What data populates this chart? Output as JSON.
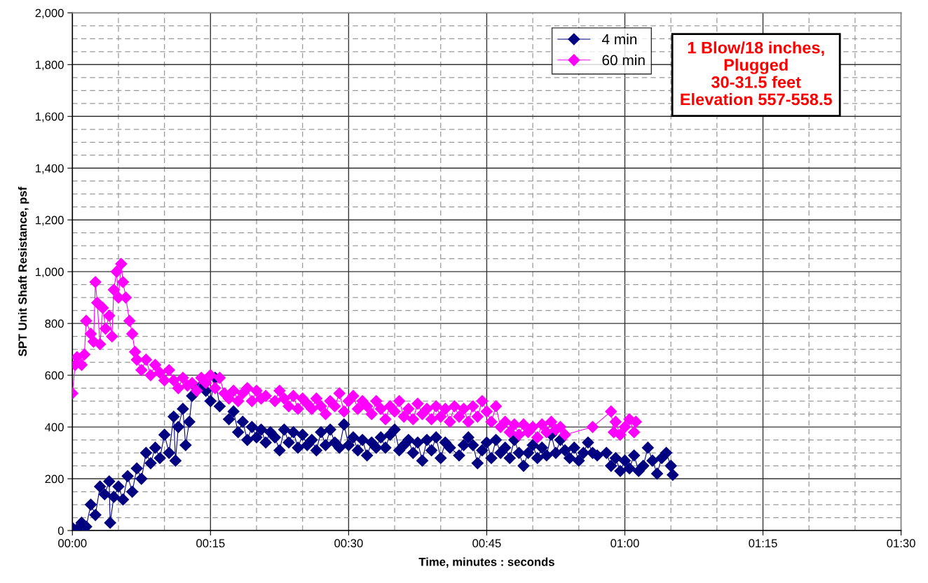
{
  "chart_data": {
    "type": "line",
    "xlabel": "Time, minutes : seconds",
    "ylabel": "SPT Unit Shaft Resistance, psf",
    "annotations": [
      "1 Blow/18 inches,\nPlugged\n30-31.5 feet\nElevation 557-558.5"
    ],
    "xlim": [
      0,
      90
    ],
    "ylim": [
      0,
      2000
    ],
    "xticks": [
      {
        "value": 0,
        "label": "00:00"
      },
      {
        "value": 5,
        "label": null
      },
      {
        "value": 10,
        "label": null
      },
      {
        "value": 15,
        "label": "00:15"
      },
      {
        "value": 20,
        "label": null
      },
      {
        "value": 25,
        "label": null
      },
      {
        "value": 30,
        "label": "00:30"
      },
      {
        "value": 35,
        "label": null
      },
      {
        "value": 40,
        "label": null
      },
      {
        "value": 45,
        "label": "00:45"
      },
      {
        "value": 50,
        "label": null
      },
      {
        "value": 55,
        "label": null
      },
      {
        "value": 60,
        "label": "01:00"
      },
      {
        "value": 65,
        "label": null
      },
      {
        "value": 70,
        "label": null
      },
      {
        "value": 75,
        "label": "01:15"
      },
      {
        "value": 80,
        "label": null
      },
      {
        "value": 85,
        "label": null
      },
      {
        "value": 90,
        "label": "01:30"
      }
    ],
    "yticks": [
      0,
      {
        "value": 50,
        "label": null
      },
      {
        "value": 100,
        "label": null
      },
      {
        "value": 150,
        "label": null
      },
      200,
      {
        "value": 250,
        "label": null
      },
      {
        "value": 300,
        "label": null
      },
      {
        "value": 350,
        "label": null
      },
      400,
      {
        "value": 450,
        "label": null
      },
      {
        "value": 500,
        "label": null
      },
      {
        "value": 550,
        "label": null
      },
      600,
      {
        "value": 650,
        "label": null
      },
      {
        "value": 700,
        "label": null
      },
      {
        "value": 750,
        "label": null
      },
      800,
      {
        "value": 850,
        "label": null
      },
      {
        "value": 900,
        "label": null
      },
      {
        "value": 950,
        "label": null
      },
      {
        "value": 1000,
        "label": "1,000"
      },
      {
        "value": 1050,
        "label": null
      },
      {
        "value": 1100,
        "label": null
      },
      {
        "value": 1150,
        "label": null
      },
      {
        "value": 1200,
        "label": "1,200"
      },
      {
        "value": 1250,
        "label": null
      },
      {
        "value": 1300,
        "label": null
      },
      {
        "value": 1350,
        "label": null
      },
      {
        "value": 1400,
        "label": "1,400"
      },
      {
        "value": 1450,
        "label": null
      },
      {
        "value": 1500,
        "label": null
      },
      {
        "value": 1550,
        "label": null
      },
      {
        "value": 1600,
        "label": "1,600"
      },
      {
        "value": 1650,
        "label": null
      },
      {
        "value": 1700,
        "label": null
      },
      {
        "value": 1750,
        "label": null
      },
      {
        "value": 1800,
        "label": "1,800"
      },
      {
        "value": 1850,
        "label": null
      },
      {
        "value": 1900,
        "label": null
      },
      {
        "value": 1950,
        "label": null
      },
      {
        "value": 2000,
        "label": "2,000"
      }
    ],
    "grid": true,
    "legend": "top",
    "marker": "diamond",
    "line_style": "solid",
    "series": [
      {
        "name": "4 min",
        "color": "#000080",
        "x": [
          0,
          0.5,
          1,
          1.5,
          2,
          2.5,
          3,
          3.5,
          4,
          4.1,
          4.5,
          5,
          5.5,
          6,
          6.5,
          7,
          7.5,
          8,
          8.5,
          9,
          9.5,
          10,
          10.5,
          11,
          11.2,
          11.5,
          12,
          12.3,
          12.7,
          13,
          13.5,
          14,
          14.5,
          15,
          15.5,
          16,
          16.5,
          17,
          17.5,
          18,
          18.5,
          19,
          19.5,
          20,
          20.5,
          21,
          21.5,
          22,
          22.5,
          23,
          23.5,
          24,
          24.5,
          25,
          25.5,
          26,
          26.5,
          27,
          27.5,
          28,
          28.5,
          29,
          29.5,
          30,
          30.5,
          31,
          31.5,
          32,
          32.5,
          33,
          33.5,
          34,
          34.5,
          35,
          35.5,
          36,
          36.5,
          37,
          37.5,
          38,
          38.5,
          39,
          39.5,
          40,
          40.5,
          41,
          42,
          42.5,
          43,
          43.5,
          44,
          44.5,
          45,
          45.5,
          46,
          46.5,
          47,
          47.5,
          48,
          48.5,
          49,
          49.5,
          50,
          50.5,
          51,
          51.5,
          52,
          52.5,
          53,
          53.5,
          54,
          54.5,
          55,
          55.5,
          56,
          56.5,
          57,
          58,
          58.5,
          59,
          59.5,
          60,
          60.5,
          61,
          61.5,
          62,
          62.5,
          63,
          63.5,
          64,
          64.5,
          65,
          65.2
        ],
        "values": [
          10,
          5,
          30,
          15,
          100,
          60,
          170,
          140,
          190,
          30,
          130,
          170,
          120,
          210,
          150,
          240,
          200,
          300,
          260,
          320,
          280,
          370,
          300,
          440,
          270,
          400,
          470,
          330,
          420,
          520,
          550,
          560,
          540,
          500,
          590,
          480,
          null,
          430,
          460,
          380,
          420,
          350,
          400,
          360,
          390,
          340,
          380,
          360,
          310,
          390,
          340,
          380,
          320,
          370,
          330,
          350,
          310,
          380,
          330,
          390,
          340,
          320,
          410,
          330,
          360,
          310,
          350,
          290,
          340,
          320,
          360,
          320,
          370,
          390,
          310,
          330,
          350,
          300,
          340,
          270,
          350,
          310,
          360,
          280,
          340,
          320,
          290,
          330,
          360,
          330,
          260,
          310,
          340,
          280,
          350,
          300,
          320,
          280,
          350,
          300,
          250,
          300,
          330,
          280,
          320,
          290,
          370,
          300,
          350,
          310,
          280,
          320,
          270,
          300,
          340,
          300,
          290,
          300,
          250,
          280,
          230,
          270,
          240,
          290,
          230,
          250,
          320,
          270,
          220,
          280,
          300,
          250,
          215
        ]
      },
      {
        "name": "60 min",
        "color": "#ff00ff",
        "x": [
          0,
          0.3,
          0.5,
          1,
          1.3,
          1.5,
          2,
          2.3,
          2.5,
          2.7,
          3,
          3.3,
          3.6,
          4,
          4.3,
          4.5,
          4.8,
          5,
          5.3,
          5.5,
          5.8,
          6.2,
          6.5,
          6.8,
          7,
          7.5,
          8,
          8.5,
          9,
          9.5,
          10,
          10.5,
          11,
          11.5,
          12,
          12.5,
          13,
          13.5,
          14,
          14.5,
          15,
          15.5,
          16,
          16.5,
          17,
          17.5,
          18,
          18.5,
          19,
          19.5,
          20,
          20.5,
          21,
          22,
          22.5,
          23,
          23.5,
          24,
          24.5,
          25,
          25.5,
          26,
          26.5,
          27,
          27.5,
          28,
          28.5,
          29,
          29.5,
          30,
          30.5,
          31,
          31.5,
          32,
          32.5,
          33,
          33.5,
          34,
          34.5,
          35,
          35.5,
          36,
          36.5,
          37,
          37.5,
          38,
          38.5,
          39,
          39.5,
          40,
          40.5,
          41,
          41.5,
          42,
          42.5,
          43,
          43.5,
          44,
          44.5,
          45,
          45.5,
          46,
          46.5,
          47,
          47.5,
          48,
          48.5,
          49,
          49.5,
          50,
          50.5,
          51,
          51.5,
          52,
          52.5,
          53,
          53.5,
          56.5,
          58.5,
          58.8,
          59,
          59.5,
          60,
          60.5,
          61,
          61.2
        ],
        "values": [
          530,
          640,
          670,
          640,
          680,
          810,
          760,
          730,
          960,
          880,
          720,
          860,
          780,
          830,
          750,
          930,
          1000,
          900,
          1030,
          960,
          900,
          810,
          760,
          690,
          660,
          620,
          660,
          600,
          640,
          610,
          580,
          620,
          580,
          550,
          590,
          560,
          570,
          540,
          590,
          570,
          600,
          550,
          590,
          530,
          510,
          540,
          500,
          530,
          550,
          500,
          540,
          510,
          520,
          500,
          540,
          510,
          480,
          520,
          470,
          510,
          490,
          470,
          510,
          480,
          450,
          500,
          480,
          530,
          460,
          500,
          520,
          470,
          500,
          480,
          450,
          500,
          470,
          430,
          480,
          460,
          500,
          440,
          470,
          430,
          490,
          450,
          470,
          430,
          480,
          440,
          470,
          420,
          480,
          440,
          470,
          420,
          480,
          440,
          500,
          460,
          420,
          480,
          400,
          420,
          380,
          410,
          370,
          410,
          380,
          400,
          360,
          410,
          380,
          420,
          390,
          400,
          370,
          400,
          460,
          380,
          420,
          370,
          400,
          430,
          380,
          420
        ]
      }
    ]
  }
}
